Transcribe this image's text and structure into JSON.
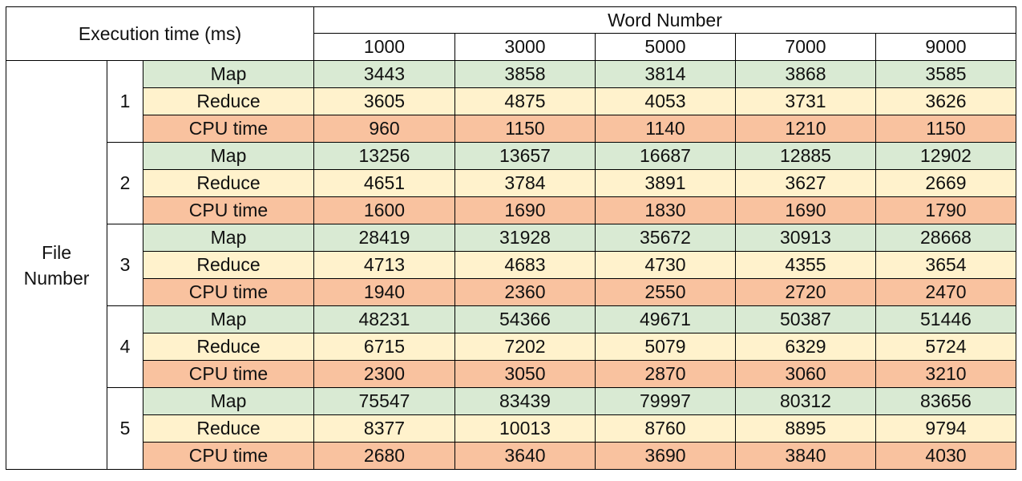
{
  "chart_data": {
    "type": "table",
    "corner_label": "Execution time (ms)",
    "column_group_label": "Word Number",
    "row_group_label": "File Number",
    "columns": [
      "1000",
      "3000",
      "5000",
      "7000",
      "9000"
    ],
    "metrics": [
      "Map",
      "Reduce",
      "CPU time"
    ],
    "metric_colors": {
      "Map": "#d9ead3",
      "Reduce": "#fff2cc",
      "CPU time": "#f9c29f"
    },
    "groups": [
      {
        "file": "1",
        "rows": [
          {
            "metric": "Map",
            "values": [
              3443,
              3858,
              3814,
              3868,
              3585
            ]
          },
          {
            "metric": "Reduce",
            "values": [
              3605,
              4875,
              4053,
              3731,
              3626
            ]
          },
          {
            "metric": "CPU time",
            "values": [
              960,
              1150,
              1140,
              1210,
              1150
            ]
          }
        ]
      },
      {
        "file": "2",
        "rows": [
          {
            "metric": "Map",
            "values": [
              13256,
              13657,
              16687,
              12885,
              12902
            ]
          },
          {
            "metric": "Reduce",
            "values": [
              4651,
              3784,
              3891,
              3627,
              2669
            ]
          },
          {
            "metric": "CPU time",
            "values": [
              1600,
              1690,
              1830,
              1690,
              1790
            ]
          }
        ]
      },
      {
        "file": "3",
        "rows": [
          {
            "metric": "Map",
            "values": [
              28419,
              31928,
              35672,
              30913,
              28668
            ]
          },
          {
            "metric": "Reduce",
            "values": [
              4713,
              4683,
              4730,
              4355,
              3654
            ]
          },
          {
            "metric": "CPU time",
            "values": [
              1940,
              2360,
              2550,
              2720,
              2470
            ]
          }
        ]
      },
      {
        "file": "4",
        "rows": [
          {
            "metric": "Map",
            "values": [
              48231,
              54366,
              49671,
              50387,
              51446
            ]
          },
          {
            "metric": "Reduce",
            "values": [
              6715,
              7202,
              5079,
              6329,
              5724
            ]
          },
          {
            "metric": "CPU time",
            "values": [
              2300,
              3050,
              2870,
              3060,
              3210
            ]
          }
        ]
      },
      {
        "file": "5",
        "rows": [
          {
            "metric": "Map",
            "values": [
              75547,
              83439,
              79997,
              80312,
              83656
            ]
          },
          {
            "metric": "Reduce",
            "values": [
              8377,
              10013,
              8760,
              8895,
              9794
            ]
          },
          {
            "metric": "CPU time",
            "values": [
              2680,
              3640,
              3690,
              3840,
              4030
            ]
          }
        ]
      }
    ]
  }
}
